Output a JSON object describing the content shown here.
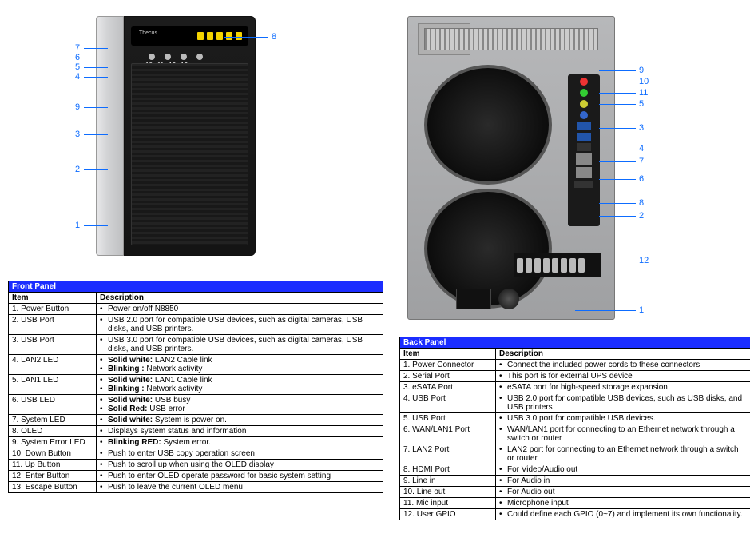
{
  "front": {
    "title": "Front Panel",
    "headers": {
      "item": "Item",
      "desc": "Description"
    },
    "device": {
      "brand": "Thecus",
      "btnLabels": [
        "10",
        "11",
        "12",
        "13"
      ]
    },
    "callouts": [
      "1",
      "2",
      "3",
      "4",
      "5",
      "6",
      "7",
      "8",
      "9"
    ],
    "rows": [
      {
        "n": "1.",
        "item": "Power Button",
        "desc": [
          "Power on/off N8850"
        ]
      },
      {
        "n": "2.",
        "item": "USB Port",
        "desc": [
          "USB 2.0 port for compatible USB devices, such as digital cameras, USB disks, and USB printers."
        ]
      },
      {
        "n": "3.",
        "item": "USB Port",
        "desc": [
          "USB 3.0 port for compatible USB devices, such as digital cameras, USB disks, and USB printers."
        ]
      },
      {
        "n": "4.",
        "item": "LAN2 LED",
        "desc": [
          "<b>Solid white:</b> LAN2 Cable link",
          "<b>Blinking :</b> Network activity"
        ]
      },
      {
        "n": "5.",
        "item": "LAN1 LED",
        "desc": [
          "<b>Solid white:</b> LAN1 Cable link",
          "<b>Blinking :</b> Network activity"
        ]
      },
      {
        "n": "6.",
        "item": "USB LED",
        "desc": [
          "<b>Solid white:</b> USB busy",
          "<b>Solid Red:</b> USB error"
        ]
      },
      {
        "n": "7.",
        "item": "System LED",
        "desc": [
          "<b>Solid white:</b> System is power on."
        ]
      },
      {
        "n": "8.",
        "item": "OLED",
        "desc": [
          "Displays system status and information"
        ]
      },
      {
        "n": "9.",
        "item": "System Error LED",
        "desc": [
          "<b>Blinking RED:</b> System error."
        ]
      },
      {
        "n": "10.",
        "item": "Down Button",
        "desc": [
          "Push to enter USB copy operation screen"
        ]
      },
      {
        "n": "11.",
        "item": "Up Button",
        "desc": [
          "Push to scroll up when using the OLED display"
        ]
      },
      {
        "n": "12.",
        "item": "Enter Button",
        "desc": [
          "Push to enter OLED operate password for basic system setting"
        ]
      },
      {
        "n": "13.",
        "item": "Escape Button",
        "desc": [
          "Push to leave the current OLED menu"
        ]
      }
    ]
  },
  "back": {
    "title": "Back Panel",
    "headers": {
      "item": "Item",
      "desc": "Description"
    },
    "callouts": [
      "1",
      "2",
      "3",
      "4",
      "5",
      "6",
      "7",
      "8",
      "9",
      "10",
      "11",
      "12"
    ],
    "rows": [
      {
        "n": "1.",
        "item": "Power Connector",
        "desc": [
          "Connect the included power cords to these connectors"
        ]
      },
      {
        "n": "2.",
        "item": "Serial Port",
        "desc": [
          "This port is for external UPS device"
        ]
      },
      {
        "n": "3.",
        "item": "eSATA Port",
        "desc": [
          "eSATA port for high-speed storage expansion"
        ]
      },
      {
        "n": "4.",
        "item": "USB Port",
        "desc": [
          "USB 2.0 port for compatible USB devices, such as USB disks, and USB printers"
        ]
      },
      {
        "n": "5.",
        "item": "USB Port",
        "desc": [
          "USB 3.0 port for compatible USB devices."
        ]
      },
      {
        "n": "6.",
        "item": "WAN/LAN1 Port",
        "desc": [
          "WAN/LAN1 port for connecting to an Ethernet network through a switch or router"
        ]
      },
      {
        "n": "7.",
        "item": "LAN2 Port",
        "desc": [
          "LAN2 port for connecting to an Ethernet network through a switch or router"
        ]
      },
      {
        "n": "8.",
        "item": "HDMI Port",
        "desc": [
          "For Video/Audio out"
        ]
      },
      {
        "n": "9.",
        "item": "Line in",
        "desc": [
          "For Audio in"
        ]
      },
      {
        "n": "10.",
        "item": "Line out",
        "desc": [
          "For Audio out"
        ]
      },
      {
        "n": "11.",
        "item": "Mic input",
        "desc": [
          "Microphone input"
        ]
      },
      {
        "n": "12.",
        "item": "User GPIO",
        "desc": [
          "Could define each GPIO (0~7) and implement its own functionality."
        ]
      }
    ]
  },
  "style": {
    "header_bg": "#1b2dff",
    "header_fg": "#ffffff",
    "callout_color": "#0d6cff",
    "border_color": "#000000",
    "font_size_pt": 8
  }
}
